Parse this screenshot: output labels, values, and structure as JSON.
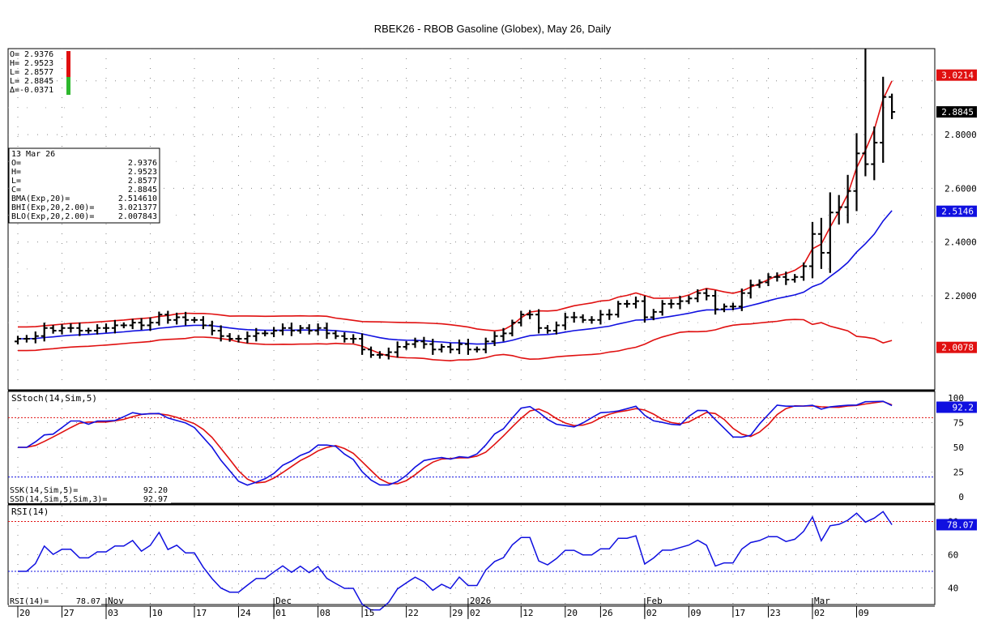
{
  "title": "RBEK26 - RBOB Gasoline (Globex), May 26, Daily",
  "price_panel": {
    "ohlc_header": [
      "O= 2.9376",
      "H= 2.9523",
      "L= 2.8577",
      "L= 2.8845",
      "Δ=-0.0371"
    ],
    "info_box": [
      [
        "13 Mar 26",
        ""
      ],
      [
        "O=",
        "2.9376"
      ],
      [
        "H=",
        "2.9523"
      ],
      [
        "L=",
        "2.8577"
      ],
      [
        "C=",
        "2.8845"
      ],
      [
        "BMA(Exp,20)=",
        "2.514610"
      ],
      [
        "BHI(Exp,20,2.00)=",
        "3.021377"
      ],
      [
        "BLO(Exp,20,2.00)=",
        "2.007843"
      ]
    ],
    "axis_ticks": [
      "2.8000",
      "2.6000",
      "2.4000",
      "2.2000"
    ],
    "value_tags": [
      {
        "text": "3.0214",
        "bg": "#e01010",
        "fg": "#ffffff",
        "value": 3.0214
      },
      {
        "text": "2.8845",
        "bg": "#000000",
        "fg": "#ffffff",
        "value": 2.8845
      },
      {
        "text": "2.5146",
        "bg": "#1010e0",
        "fg": "#ffffff",
        "value": 2.5146
      },
      {
        "text": "2.0078",
        "bg": "#e01010",
        "fg": "#ffffff",
        "value": 2.0078
      }
    ]
  },
  "stoch_panel": {
    "label": "SStoch(14,Sim,5)",
    "readout": [
      [
        "SSK(14,Sim,5)=",
        "92.20"
      ],
      [
        "SSD(14,Sim,5,Sim,3)=",
        "92.97"
      ]
    ],
    "axis_ticks": [
      "100",
      "75",
      "50",
      "25",
      "0"
    ],
    "value_tag": {
      "text": "92.2",
      "bg": "#1010e0",
      "fg": "#ffffff"
    }
  },
  "rsi_panel": {
    "label": "RSI(14)",
    "readout": [
      [
        "RSI(14)=",
        "78.07"
      ]
    ],
    "axis_ticks": [
      "80",
      "60",
      "40"
    ],
    "value_tag": {
      "text": "78.07",
      "bg": "#1010e0",
      "fg": "#ffffff"
    }
  },
  "x_axis": {
    "month_labels": [
      "Nov",
      "Dec",
      "2026",
      "Feb",
      "Mar"
    ],
    "day_labels": [
      "20",
      "27",
      "03",
      "10",
      "17",
      "24",
      "01",
      "08",
      "15",
      "22",
      "29",
      "02",
      "12",
      "20",
      "26",
      "02",
      "09",
      "17",
      "23",
      "02",
      "09"
    ]
  },
  "colors": {
    "up_down_bars": "#000000",
    "band_upper_lower": "#e01010",
    "band_mid": "#1010e0",
    "stoch_k": "#1010e0",
    "stoch_d": "#e01010",
    "rsi": "#1010e0"
  },
  "chart_data": [
    {
      "type": "ohlc",
      "title": "RBEK26 - RBOB Gasoline (Globex), May 26, Daily",
      "dates": [
        "10-20",
        "10-21",
        "10-22",
        "10-23",
        "10-24",
        "10-27",
        "10-28",
        "10-29",
        "10-30",
        "10-31",
        "11-03",
        "11-04",
        "11-05",
        "11-06",
        "11-07",
        "11-10",
        "11-11",
        "11-12",
        "11-13",
        "11-14",
        "11-17",
        "11-18",
        "11-19",
        "11-20",
        "11-21",
        "11-24",
        "11-25",
        "11-26",
        "11-28",
        "12-01",
        "12-02",
        "12-03",
        "12-04",
        "12-05",
        "12-08",
        "12-09",
        "12-10",
        "12-11",
        "12-12",
        "12-15",
        "12-16",
        "12-17",
        "12-18",
        "12-19",
        "12-22",
        "12-23",
        "12-24",
        "12-26",
        "12-29",
        "12-30",
        "12-31",
        "01-02",
        "01-05",
        "01-06",
        "01-07",
        "01-08",
        "01-09",
        "01-12",
        "01-13",
        "01-14",
        "01-15",
        "01-16",
        "01-20",
        "01-21",
        "01-22",
        "01-23",
        "01-26",
        "01-27",
        "01-28",
        "01-29",
        "01-30",
        "02-02",
        "02-03",
        "02-04",
        "02-05",
        "02-06",
        "02-09",
        "02-10",
        "02-11",
        "02-12",
        "02-13",
        "02-17",
        "02-18",
        "02-19",
        "02-20",
        "02-23",
        "02-24",
        "02-25",
        "02-26",
        "02-27",
        "03-02",
        "03-03",
        "03-04",
        "03-05",
        "03-06",
        "03-09",
        "03-10",
        "03-11",
        "03-12",
        "03-13"
      ],
      "close": [
        2.04,
        2.04,
        2.05,
        2.08,
        2.07,
        2.08,
        2.08,
        2.07,
        2.07,
        2.08,
        2.08,
        2.09,
        2.09,
        2.1,
        2.09,
        2.1,
        2.13,
        2.11,
        2.12,
        2.11,
        2.11,
        2.09,
        2.07,
        2.05,
        2.04,
        2.04,
        2.05,
        2.06,
        2.06,
        2.07,
        2.08,
        2.07,
        2.08,
        2.07,
        2.08,
        2.06,
        2.05,
        2.04,
        2.04,
        2.0,
        1.98,
        1.98,
        1.99,
        2.01,
        2.02,
        2.03,
        2.02,
        2.0,
        2.01,
        2.0,
        2.02,
        2.0,
        2.0,
        2.03,
        2.05,
        2.06,
        2.1,
        2.13,
        2.13,
        2.08,
        2.07,
        2.09,
        2.12,
        2.12,
        2.11,
        2.11,
        2.13,
        2.13,
        2.17,
        2.17,
        2.18,
        2.12,
        2.14,
        2.17,
        2.17,
        2.18,
        2.19,
        2.21,
        2.2,
        2.15,
        2.16,
        2.16,
        2.21,
        2.24,
        2.25,
        2.27,
        2.27,
        2.26,
        2.27,
        2.31,
        2.43,
        2.36,
        2.51,
        2.53,
        2.59,
        2.73,
        2.69,
        2.77,
        2.94,
        2.8845
      ],
      "bands": {
        "upper": "BHI(Exp,20,2.00)",
        "mid": "BMA(Exp,20)",
        "lower": "BLO(Exp,20,2.00)"
      },
      "ylim": [
        1.85,
        3.12
      ]
    },
    {
      "type": "line",
      "title": "SStoch(14,Sim,5)",
      "series": [
        {
          "name": "SSK(14,Sim,5)"
        },
        {
          "name": "SSD(14,Sim,5,Sim,3)"
        }
      ],
      "ylim": [
        0,
        100
      ],
      "reference_lines": [
        80,
        20
      ]
    },
    {
      "type": "line",
      "title": "RSI(14)",
      "series": [
        {
          "name": "RSI(14)"
        }
      ],
      "ylim": [
        30,
        90
      ],
      "reference_lines": [
        80,
        50
      ]
    }
  ]
}
